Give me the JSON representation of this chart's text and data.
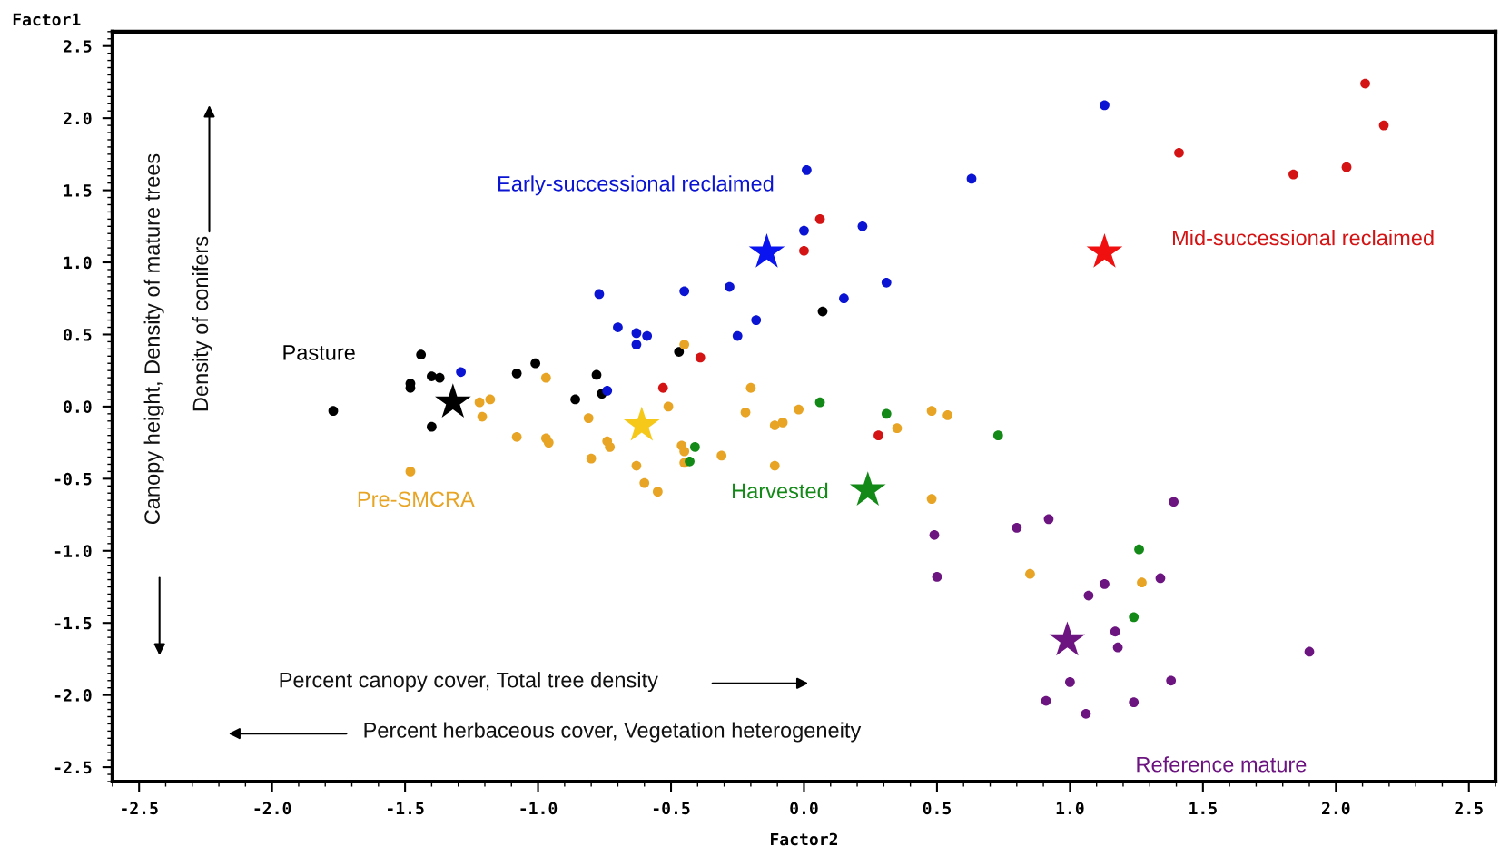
{
  "chart_data": {
    "type": "scatter",
    "xlabel": "Factor2",
    "ylabel": "Factor1",
    "xlim": [
      -2.6,
      2.6
    ],
    "ylim": [
      -2.6,
      2.6
    ],
    "xticks": [
      {
        "value": -2.5,
        "label": "-2.5"
      },
      {
        "value": -2.0,
        "label": "-2.0"
      },
      {
        "value": -1.5,
        "label": "-1.5"
      },
      {
        "value": -1.0,
        "label": "-1.0"
      },
      {
        "value": -0.5,
        "label": "-0.5"
      },
      {
        "value": 0.0,
        "label": "0.0"
      },
      {
        "value": 0.5,
        "label": "0.5"
      },
      {
        "value": 1.0,
        "label": "1.0"
      },
      {
        "value": 1.5,
        "label": "1.5"
      },
      {
        "value": 2.0,
        "label": "2.0"
      },
      {
        "value": 2.5,
        "label": "2.5"
      }
    ],
    "yticks": [
      {
        "value": -2.5,
        "label": "-2.5"
      },
      {
        "value": -2.0,
        "label": "-2.0"
      },
      {
        "value": -1.5,
        "label": "-1.5"
      },
      {
        "value": -1.0,
        "label": "-1.0"
      },
      {
        "value": -0.5,
        "label": "-0.5"
      },
      {
        "value": 0.0,
        "label": "0.0"
      },
      {
        "value": 0.5,
        "label": "0.5"
      },
      {
        "value": 1.0,
        "label": "1.0"
      },
      {
        "value": 1.5,
        "label": "1.5"
      },
      {
        "value": 2.0,
        "label": "2.0"
      },
      {
        "value": 2.5,
        "label": "2.5"
      }
    ],
    "grid": false,
    "legend": false,
    "marker": "circle",
    "series": [
      {
        "name": "Pasture",
        "color": "#000000",
        "x": [
          -1.77,
          -1.44,
          -1.48,
          -1.48,
          -1.4,
          -1.37,
          -1.4,
          -1.08,
          -1.01,
          -0.86,
          -0.78,
          -0.76,
          -0.47,
          0.07
        ],
        "values": [
          -0.03,
          0.36,
          0.16,
          0.13,
          0.21,
          0.2,
          -0.14,
          0.23,
          0.3,
          0.05,
          0.22,
          0.09,
          0.38,
          0.66
        ]
      },
      {
        "name": "Early-successional reclaimed",
        "color": "#0a14d2",
        "x": [
          -1.29,
          -0.77,
          -0.7,
          -0.63,
          -0.59,
          -0.63,
          -0.74,
          -0.45,
          -0.28,
          -0.25,
          -0.18,
          0.01,
          0.0,
          0.15,
          0.22,
          0.31,
          0.63,
          1.13
        ],
        "values": [
          0.24,
          0.78,
          0.55,
          0.51,
          0.49,
          0.43,
          0.11,
          0.8,
          0.83,
          0.49,
          0.6,
          1.64,
          1.22,
          0.75,
          1.25,
          0.86,
          1.58,
          2.09
        ]
      },
      {
        "name": "Mid-successional reclaimed",
        "color": "#d41414",
        "x": [
          0.06,
          0.0,
          -0.39,
          -0.53,
          0.28,
          1.41,
          2.11,
          2.18,
          1.84,
          2.04
        ],
        "values": [
          1.3,
          1.08,
          0.34,
          0.13,
          -0.2,
          1.76,
          2.24,
          1.95,
          1.61,
          1.66
        ]
      },
      {
        "name": "Pre-SMCRA",
        "color": "#e8a424",
        "x": [
          -1.48,
          -1.22,
          -1.18,
          -1.21,
          -0.97,
          -1.08,
          -0.97,
          -0.96,
          -0.81,
          -0.8,
          -0.74,
          -0.73,
          -0.63,
          -0.6,
          -0.55,
          -0.51,
          -0.45,
          -0.46,
          -0.45,
          -0.45,
          -0.31,
          -0.22,
          -0.2,
          -0.11,
          -0.08,
          -0.11,
          -0.02,
          0.35,
          0.48,
          0.54,
          0.48,
          0.85,
          1.27
        ],
        "values": [
          -0.45,
          0.03,
          0.05,
          -0.07,
          0.2,
          -0.21,
          -0.22,
          -0.25,
          -0.08,
          -0.36,
          -0.24,
          -0.28,
          -0.41,
          -0.53,
          -0.59,
          0.0,
          0.43,
          -0.27,
          -0.31,
          -0.39,
          -0.34,
          -0.04,
          0.13,
          -0.41,
          -0.11,
          -0.13,
          -0.02,
          -0.15,
          -0.03,
          -0.06,
          -0.64,
          -1.16,
          -1.22
        ]
      },
      {
        "name": "Harvested",
        "color": "#138a17",
        "x": [
          0.06,
          0.31,
          0.73,
          -0.41,
          -0.43,
          1.26,
          1.24
        ],
        "values": [
          0.03,
          -0.05,
          -0.2,
          -0.28,
          -0.38,
          -0.99,
          -1.46
        ]
      },
      {
        "name": "Reference mature",
        "color": "#6c1480",
        "x": [
          1.39,
          0.92,
          0.8,
          0.49,
          0.5,
          1.07,
          1.13,
          1.34,
          1.17,
          1.18,
          1.9,
          1.38,
          1.0,
          0.91,
          1.06,
          1.24
        ],
        "values": [
          -0.66,
          -0.78,
          -0.84,
          -0.89,
          -1.18,
          -1.31,
          -1.23,
          -1.19,
          -1.56,
          -1.67,
          -1.7,
          -1.9,
          -1.91,
          -2.04,
          -2.13,
          -2.05
        ]
      },
      {
        "color": "#000000",
        "marker": "star",
        "x": [
          -1.32
        ],
        "values": [
          0.03
        ]
      },
      {
        "color": "#0a14f0",
        "marker": "star",
        "x": [
          -0.14
        ],
        "values": [
          1.07
        ]
      },
      {
        "color": "#f01010",
        "marker": "star",
        "x": [
          1.13
        ],
        "values": [
          1.07
        ]
      },
      {
        "color": "#f5c81a",
        "marker": "star",
        "x": [
          -0.61
        ],
        "values": [
          -0.13
        ]
      },
      {
        "color": "#138a17",
        "marker": "star",
        "x": [
          0.24
        ],
        "values": [
          -0.58
        ]
      },
      {
        "color": "#6c1480",
        "marker": "star",
        "x": [
          0.99
        ],
        "values": [
          -1.62
        ]
      }
    ],
    "annotations": [
      "Canopy height, Density of mature trees",
      "Density of conifers",
      "Percent canopy cover, Total tree density",
      "Percent herbaceous cover, Vegetation heterogeneity"
    ]
  }
}
